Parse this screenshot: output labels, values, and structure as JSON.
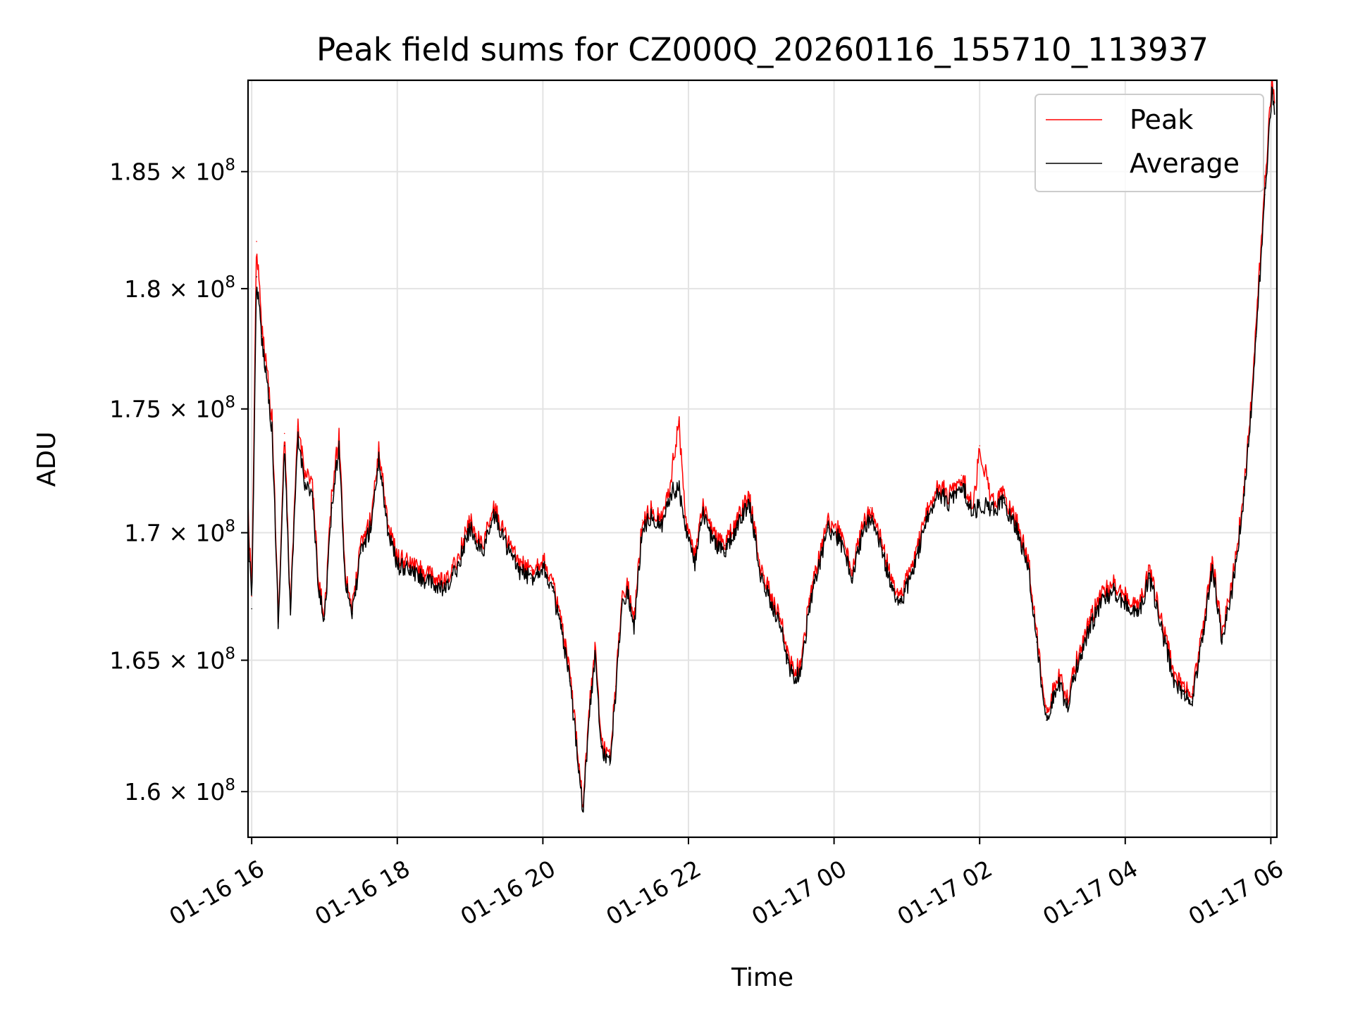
{
  "chart_data": {
    "type": "line",
    "title": "Peak field sums for CZ000Q_20260116_155710_113937",
    "xlabel": "Time",
    "ylabel": "ADU",
    "y_scale": "log",
    "grid": true,
    "legend_position": "upper right",
    "xlim": [
      "2026-01-16 15:57",
      "2026-01-17 06:05"
    ],
    "ylim": [
      158300000,
      189000000
    ],
    "x_ticks": [
      "01-16 16",
      "01-16 18",
      "01-16 20",
      "01-16 22",
      "01-17 00",
      "01-17 02",
      "01-17 04",
      "01-17 06"
    ],
    "x_tick_values": [
      "2026-01-16 16:00",
      "2026-01-16 18:00",
      "2026-01-16 20:00",
      "2026-01-16 22:00",
      "2026-01-17 00:00",
      "2026-01-17 02:00",
      "2026-01-17 04:00",
      "2026-01-17 06:00"
    ],
    "y_ticks": [
      {
        "value": 160000000,
        "mantissa": "1.6",
        "exponent": "8"
      },
      {
        "value": 165000000,
        "mantissa": "1.65",
        "exponent": "8"
      },
      {
        "value": 170000000,
        "mantissa": "1.7",
        "exponent": "8"
      },
      {
        "value": 175000000,
        "mantissa": "1.75",
        "exponent": "8"
      },
      {
        "value": 180000000,
        "mantissa": "1.8",
        "exponent": "8"
      },
      {
        "value": 185000000,
        "mantissa": "1.85",
        "exponent": "8"
      }
    ],
    "y_tick_multiplier": "× 10",
    "series": [
      {
        "name": "Peak",
        "color": "#ff0000",
        "points": [
          [
            "2026-01-16 15:57",
            171000000
          ],
          [
            "2026-01-16 16:00",
            167500000
          ],
          [
            "2026-01-16 16:04",
            182000000
          ],
          [
            "2026-01-16 16:08",
            178500000
          ],
          [
            "2026-01-16 16:12",
            177000000
          ],
          [
            "2026-01-16 16:17",
            174500000
          ],
          [
            "2026-01-16 16:22",
            166500000
          ],
          [
            "2026-01-16 16:27",
            174000000
          ],
          [
            "2026-01-16 16:32",
            167000000
          ],
          [
            "2026-01-16 16:38",
            174300000
          ],
          [
            "2026-01-16 16:44",
            172500000
          ],
          [
            "2026-01-16 16:50",
            172000000
          ],
          [
            "2026-01-16 16:55",
            168000000
          ],
          [
            "2026-01-16 17:00",
            166800000
          ],
          [
            "2026-01-16 17:06",
            171500000
          ],
          [
            "2026-01-16 17:12",
            174000000
          ],
          [
            "2026-01-16 17:17",
            168500000
          ],
          [
            "2026-01-16 17:23",
            167000000
          ],
          [
            "2026-01-16 17:30",
            169500000
          ],
          [
            "2026-01-16 17:38",
            170500000
          ],
          [
            "2026-01-16 17:45",
            173400000
          ],
          [
            "2026-01-16 17:52",
            170500000
          ],
          [
            "2026-01-16 18:00",
            169000000
          ],
          [
            "2026-01-16 18:10",
            168800000
          ],
          [
            "2026-01-16 18:20",
            168500000
          ],
          [
            "2026-01-16 18:30",
            168200000
          ],
          [
            "2026-01-16 18:40",
            168000000
          ],
          [
            "2026-01-16 18:50",
            169000000
          ],
          [
            "2026-01-16 19:00",
            170500000
          ],
          [
            "2026-01-16 19:10",
            169500000
          ],
          [
            "2026-01-16 19:20",
            171000000
          ],
          [
            "2026-01-16 19:30",
            169800000
          ],
          [
            "2026-01-16 19:40",
            168800000
          ],
          [
            "2026-01-16 19:50",
            168500000
          ],
          [
            "2026-01-16 20:00",
            169000000
          ],
          [
            "2026-01-16 20:08",
            168000000
          ],
          [
            "2026-01-16 20:15",
            166500000
          ],
          [
            "2026-01-16 20:22",
            164500000
          ],
          [
            "2026-01-16 20:28",
            162000000
          ],
          [
            "2026-01-16 20:33",
            159500000
          ],
          [
            "2026-01-16 20:38",
            163000000
          ],
          [
            "2026-01-16 20:43",
            165500000
          ],
          [
            "2026-01-16 20:48",
            162000000
          ],
          [
            "2026-01-16 20:55",
            161200000
          ],
          [
            "2026-01-16 21:00",
            164000000
          ],
          [
            "2026-01-16 21:05",
            167500000
          ],
          [
            "2026-01-16 21:10",
            168000000
          ],
          [
            "2026-01-16 21:15",
            166500000
          ],
          [
            "2026-01-16 21:22",
            170500000
          ],
          [
            "2026-01-16 21:30",
            171000000
          ],
          [
            "2026-01-16 21:38",
            170500000
          ],
          [
            "2026-01-16 21:45",
            172000000
          ],
          [
            "2026-01-16 21:52",
            174500000
          ],
          [
            "2026-01-16 21:58",
            170500000
          ],
          [
            "2026-01-16 22:05",
            169000000
          ],
          [
            "2026-01-16 22:12",
            171000000
          ],
          [
            "2026-01-16 22:20",
            170000000
          ],
          [
            "2026-01-16 22:30",
            169500000
          ],
          [
            "2026-01-16 22:40",
            170500000
          ],
          [
            "2026-01-16 22:50",
            171500000
          ],
          [
            "2026-01-16 23:00",
            168500000
          ],
          [
            "2026-01-16 23:08",
            167500000
          ],
          [
            "2026-01-16 23:15",
            166800000
          ],
          [
            "2026-01-16 23:22",
            165200000
          ],
          [
            "2026-01-16 23:28",
            164500000
          ],
          [
            "2026-01-16 23:33",
            165000000
          ],
          [
            "2026-01-16 23:40",
            167500000
          ],
          [
            "2026-01-16 23:48",
            169000000
          ],
          [
            "2026-01-16 23:55",
            170500000
          ],
          [
            "2026-01-17 00:05",
            170000000
          ],
          [
            "2026-01-17 00:15",
            168500000
          ],
          [
            "2026-01-17 00:22",
            170000000
          ],
          [
            "2026-01-17 00:30",
            171000000
          ],
          [
            "2026-01-17 00:40",
            169500000
          ],
          [
            "2026-01-17 00:48",
            168000000
          ],
          [
            "2026-01-17 00:55",
            167500000
          ],
          [
            "2026-01-17 01:05",
            168800000
          ],
          [
            "2026-01-17 01:15",
            170500000
          ],
          [
            "2026-01-17 01:25",
            172000000
          ],
          [
            "2026-01-17 01:35",
            171500000
          ],
          [
            "2026-01-17 01:45",
            172300000
          ],
          [
            "2026-01-17 01:55",
            171000000
          ],
          [
            "2026-01-17 02:00",
            173500000
          ],
          [
            "2026-01-17 02:10",
            171200000
          ],
          [
            "2026-01-17 02:20",
            171500000
          ],
          [
            "2026-01-17 02:30",
            170500000
          ],
          [
            "2026-01-17 02:40",
            169000000
          ],
          [
            "2026-01-17 02:47",
            166000000
          ],
          [
            "2026-01-17 02:55",
            163000000
          ],
          [
            "2026-01-17 03:05",
            164500000
          ],
          [
            "2026-01-17 03:12",
            163500000
          ],
          [
            "2026-01-17 03:20",
            165000000
          ],
          [
            "2026-01-17 03:30",
            166500000
          ],
          [
            "2026-01-17 03:40",
            167500000
          ],
          [
            "2026-01-17 03:50",
            168000000
          ],
          [
            "2026-01-17 04:00",
            167500000
          ],
          [
            "2026-01-17 04:10",
            167000000
          ],
          [
            "2026-01-17 04:20",
            168500000
          ],
          [
            "2026-01-17 04:30",
            166500000
          ],
          [
            "2026-01-17 04:40",
            164500000
          ],
          [
            "2026-01-17 04:48",
            164000000
          ],
          [
            "2026-01-17 04:55",
            163700000
          ],
          [
            "2026-01-17 05:05",
            166500000
          ],
          [
            "2026-01-17 05:12",
            169000000
          ],
          [
            "2026-01-17 05:20",
            166000000
          ],
          [
            "2026-01-17 05:28",
            168000000
          ],
          [
            "2026-01-17 05:35",
            170500000
          ],
          [
            "2026-01-17 05:42",
            174000000
          ],
          [
            "2026-01-17 05:48",
            178500000
          ],
          [
            "2026-01-17 05:55",
            184500000
          ],
          [
            "2026-01-17 06:01",
            189000000
          ],
          [
            "2026-01-17 06:03",
            188000000
          ]
        ]
      },
      {
        "name": "Average",
        "color": "#000000",
        "points": [
          [
            "2026-01-16 15:57",
            170500000
          ],
          [
            "2026-01-16 16:00",
            167000000
          ],
          [
            "2026-01-16 16:04",
            180500000
          ],
          [
            "2026-01-16 16:08",
            178000000
          ],
          [
            "2026-01-16 16:12",
            176500000
          ],
          [
            "2026-01-16 16:17",
            174000000
          ],
          [
            "2026-01-16 16:22",
            166300000
          ],
          [
            "2026-01-16 16:27",
            173500000
          ],
          [
            "2026-01-16 16:32",
            166800000
          ],
          [
            "2026-01-16 16:38",
            173800000
          ],
          [
            "2026-01-16 16:44",
            172000000
          ],
          [
            "2026-01-16 16:50",
            171500000
          ],
          [
            "2026-01-16 16:55",
            167700000
          ],
          [
            "2026-01-16 17:00",
            166600000
          ],
          [
            "2026-01-16 17:06",
            171000000
          ],
          [
            "2026-01-16 17:12",
            173500000
          ],
          [
            "2026-01-16 17:17",
            168200000
          ],
          [
            "2026-01-16 17:23",
            166800000
          ],
          [
            "2026-01-16 17:30",
            169200000
          ],
          [
            "2026-01-16 17:38",
            170200000
          ],
          [
            "2026-01-16 17:45",
            173000000
          ],
          [
            "2026-01-16 17:52",
            170200000
          ],
          [
            "2026-01-16 18:00",
            168700000
          ],
          [
            "2026-01-16 18:10",
            168500000
          ],
          [
            "2026-01-16 18:20",
            168200000
          ],
          [
            "2026-01-16 18:30",
            167900000
          ],
          [
            "2026-01-16 18:40",
            167700000
          ],
          [
            "2026-01-16 18:50",
            168700000
          ],
          [
            "2026-01-16 19:00",
            170200000
          ],
          [
            "2026-01-16 19:10",
            169200000
          ],
          [
            "2026-01-16 19:20",
            170700000
          ],
          [
            "2026-01-16 19:30",
            169500000
          ],
          [
            "2026-01-16 19:40",
            168500000
          ],
          [
            "2026-01-16 19:50",
            168200000
          ],
          [
            "2026-01-16 20:00",
            168700000
          ],
          [
            "2026-01-16 20:08",
            167700000
          ],
          [
            "2026-01-16 20:15",
            166200000
          ],
          [
            "2026-01-16 20:22",
            164200000
          ],
          [
            "2026-01-16 20:28",
            161700000
          ],
          [
            "2026-01-16 20:33",
            159300000
          ],
          [
            "2026-01-16 20:38",
            162700000
          ],
          [
            "2026-01-16 20:43",
            165200000
          ],
          [
            "2026-01-16 20:48",
            161700000
          ],
          [
            "2026-01-16 20:55",
            161000000
          ],
          [
            "2026-01-16 21:00",
            163700000
          ],
          [
            "2026-01-16 21:05",
            167200000
          ],
          [
            "2026-01-16 21:10",
            167700000
          ],
          [
            "2026-01-16 21:15",
            166200000
          ],
          [
            "2026-01-16 21:22",
            170200000
          ],
          [
            "2026-01-16 21:30",
            170700000
          ],
          [
            "2026-01-16 21:38",
            170200000
          ],
          [
            "2026-01-16 21:45",
            171600000
          ],
          [
            "2026-01-16 21:52",
            171800000
          ],
          [
            "2026-01-16 21:58",
            170200000
          ],
          [
            "2026-01-16 22:05",
            168700000
          ],
          [
            "2026-01-16 22:12",
            170700000
          ],
          [
            "2026-01-16 22:20",
            169700000
          ],
          [
            "2026-01-16 22:30",
            169200000
          ],
          [
            "2026-01-16 22:40",
            170200000
          ],
          [
            "2026-01-16 22:50",
            171200000
          ],
          [
            "2026-01-16 23:00",
            168200000
          ],
          [
            "2026-01-16 23:08",
            167200000
          ],
          [
            "2026-01-16 23:15",
            166500000
          ],
          [
            "2026-01-16 23:22",
            164900000
          ],
          [
            "2026-01-16 23:28",
            164200000
          ],
          [
            "2026-01-16 23:33",
            164700000
          ],
          [
            "2026-01-16 23:40",
            167200000
          ],
          [
            "2026-01-16 23:48",
            168700000
          ],
          [
            "2026-01-16 23:55",
            170200000
          ],
          [
            "2026-01-17 00:05",
            169700000
          ],
          [
            "2026-01-17 00:15",
            168200000
          ],
          [
            "2026-01-17 00:22",
            169700000
          ],
          [
            "2026-01-17 00:30",
            170700000
          ],
          [
            "2026-01-17 00:40",
            169200000
          ],
          [
            "2026-01-17 00:48",
            167700000
          ],
          [
            "2026-01-17 00:55",
            167200000
          ],
          [
            "2026-01-17 01:05",
            168500000
          ],
          [
            "2026-01-17 01:15",
            170200000
          ],
          [
            "2026-01-17 01:25",
            171700000
          ],
          [
            "2026-01-17 01:35",
            171200000
          ],
          [
            "2026-01-17 01:45",
            172000000
          ],
          [
            "2026-01-17 01:55",
            170700000
          ],
          [
            "2026-01-17 02:00",
            171200000
          ],
          [
            "2026-01-17 02:10",
            170900000
          ],
          [
            "2026-01-17 02:20",
            171200000
          ],
          [
            "2026-01-17 02:30",
            170200000
          ],
          [
            "2026-01-17 02:40",
            168700000
          ],
          [
            "2026-01-17 02:47",
            165700000
          ],
          [
            "2026-01-17 02:55",
            162700000
          ],
          [
            "2026-01-17 03:05",
            164200000
          ],
          [
            "2026-01-17 03:12",
            163200000
          ],
          [
            "2026-01-17 03:20",
            164700000
          ],
          [
            "2026-01-17 03:30",
            166200000
          ],
          [
            "2026-01-17 03:40",
            167200000
          ],
          [
            "2026-01-17 03:50",
            167700000
          ],
          [
            "2026-01-17 04:00",
            167200000
          ],
          [
            "2026-01-17 04:10",
            166700000
          ],
          [
            "2026-01-17 04:20",
            168200000
          ],
          [
            "2026-01-17 04:30",
            166200000
          ],
          [
            "2026-01-17 04:40",
            164200000
          ],
          [
            "2026-01-17 04:48",
            163700000
          ],
          [
            "2026-01-17 04:55",
            163400000
          ],
          [
            "2026-01-17 05:05",
            166200000
          ],
          [
            "2026-01-17 05:12",
            168700000
          ],
          [
            "2026-01-17 05:20",
            165700000
          ],
          [
            "2026-01-17 05:28",
            167700000
          ],
          [
            "2026-01-17 05:35",
            170200000
          ],
          [
            "2026-01-17 05:42",
            173700000
          ],
          [
            "2026-01-17 05:48",
            178000000
          ],
          [
            "2026-01-17 05:55",
            184000000
          ],
          [
            "2026-01-17 06:01",
            188500000
          ],
          [
            "2026-01-17 06:03",
            187500000
          ]
        ]
      }
    ]
  }
}
